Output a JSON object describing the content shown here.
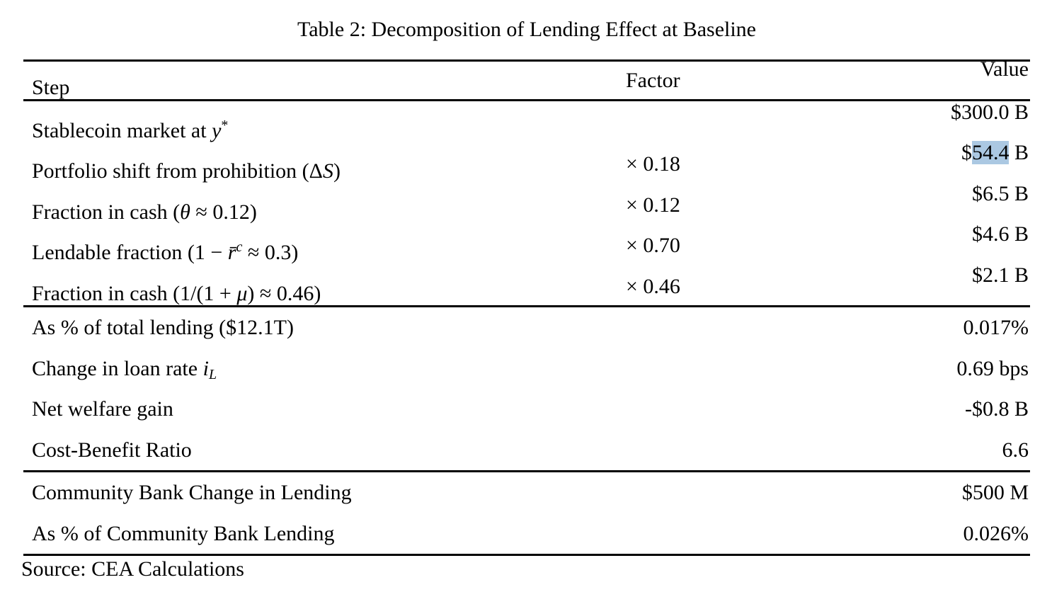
{
  "title": "Table 2: Decomposition of Lending Effect at Baseline",
  "source_note": "Source: CEA Calculations",
  "colors": {
    "highlight": "#abc8e2",
    "text": "#000000",
    "background": "#ffffff"
  },
  "table": {
    "headers": {
      "step": "Step",
      "factor": "Factor",
      "value": "Value"
    },
    "sections": [
      {
        "name": "decomposition-steps",
        "rows": [
          {
            "step": [
              {
                "t": "Stablecoin market at ",
                "s": "p"
              },
              {
                "t": "y",
                "s": "i"
              },
              {
                "t": "*",
                "s": "sup"
              }
            ],
            "factor": [],
            "value": [
              {
                "t": "$300.0 B",
                "s": "p"
              }
            ]
          },
          {
            "step": [
              {
                "t": "Portfolio shift from prohibition (Δ",
                "s": "p"
              },
              {
                "t": "S",
                "s": "i"
              },
              {
                "t": ")",
                "s": "p"
              }
            ],
            "factor": [
              {
                "t": "× 0.18",
                "s": "p"
              }
            ],
            "value": [
              {
                "t": "$",
                "s": "p"
              },
              {
                "t": "54.4",
                "s": "hl"
              },
              {
                "t": " B",
                "s": "p"
              }
            ]
          },
          {
            "step": [
              {
                "t": "Fraction in cash (",
                "s": "p"
              },
              {
                "t": "θ",
                "s": "i"
              },
              {
                "t": " ≈ 0.12)",
                "s": "p"
              }
            ],
            "factor": [
              {
                "t": "× 0.12",
                "s": "p"
              }
            ],
            "value": [
              {
                "t": "$6.5 B",
                "s": "p"
              }
            ]
          },
          {
            "step": [
              {
                "t": "Lendable fraction (1 − ",
                "s": "p"
              },
              {
                "t": "r̄",
                "s": "i"
              },
              {
                "t": "c",
                "s": "isup"
              },
              {
                "t": " ≈ 0.3)",
                "s": "p"
              }
            ],
            "factor": [
              {
                "t": "× 0.70",
                "s": "p"
              }
            ],
            "value": [
              {
                "t": "$4.6 B",
                "s": "p"
              }
            ]
          },
          {
            "step": [
              {
                "t": "Fraction in cash (1/(1 + ",
                "s": "p"
              },
              {
                "t": "μ",
                "s": "i"
              },
              {
                "t": ") ≈ 0.46)",
                "s": "p"
              }
            ],
            "factor": [
              {
                "t": "× 0.46",
                "s": "p"
              }
            ],
            "value": [
              {
                "t": "$2.1 B",
                "s": "p"
              }
            ]
          }
        ]
      },
      {
        "name": "aggregate-effects",
        "rows": [
          {
            "step": [
              {
                "t": "As % of total lending ($12.1T)",
                "s": "p"
              }
            ],
            "factor": [],
            "value": [
              {
                "t": "0.017%",
                "s": "p"
              }
            ]
          },
          {
            "step": [
              {
                "t": "Change in loan rate ",
                "s": "p"
              },
              {
                "t": "i",
                "s": "i"
              },
              {
                "t": "L",
                "s": "isub"
              }
            ],
            "factor": [],
            "value": [
              {
                "t": "0.69 bps",
                "s": "p"
              }
            ]
          },
          {
            "step": [
              {
                "t": "Net welfare gain",
                "s": "p"
              }
            ],
            "factor": [],
            "value": [
              {
                "t": "-$0.8 B",
                "s": "p"
              }
            ]
          },
          {
            "step": [
              {
                "t": "Cost-Benefit Ratio",
                "s": "p"
              }
            ],
            "factor": [],
            "value": [
              {
                "t": "6.6",
                "s": "p"
              }
            ]
          }
        ]
      },
      {
        "name": "community-bank",
        "rows": [
          {
            "step": [
              {
                "t": "Community Bank Change in Lending",
                "s": "p"
              }
            ],
            "factor": [],
            "value": [
              {
                "t": "$500 M",
                "s": "p"
              }
            ]
          },
          {
            "step": [
              {
                "t": "As % of Community Bank Lending",
                "s": "p"
              }
            ],
            "factor": [],
            "value": [
              {
                "t": "0.026%",
                "s": "p"
              }
            ]
          }
        ]
      }
    ]
  }
}
